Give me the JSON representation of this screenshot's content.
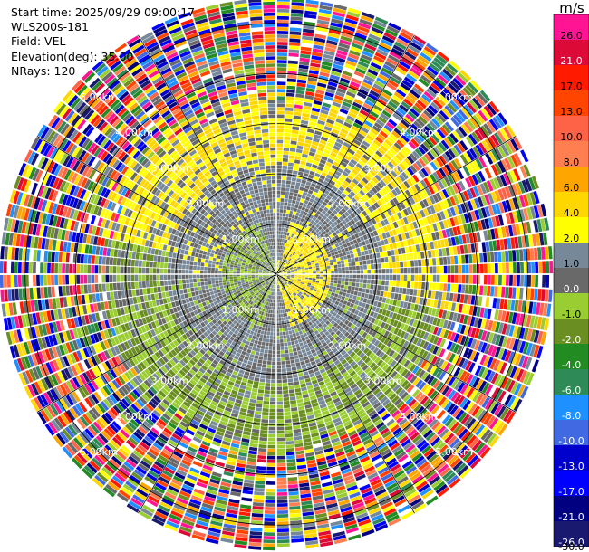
{
  "header": {
    "start_time": "Start time: 2025/09/29 09:00:17",
    "instrument": "WLS200s-181",
    "field": "Field: VEL",
    "elevation": "Elevation(deg): 35.00",
    "nrays": "NRays: 120"
  },
  "colorbar": {
    "unit": "m/s",
    "bins": [
      {
        "label": "26.0",
        "color": "#ff1493"
      },
      {
        "label": "21.0",
        "color": "#dc0a37"
      },
      {
        "label": "17.0",
        "color": "#ff1a00"
      },
      {
        "label": "13.0",
        "color": "#ff4500"
      },
      {
        "label": "10.0",
        "color": "#ff6347"
      },
      {
        "label": "8.0",
        "color": "#ff7f50"
      },
      {
        "label": "6.0",
        "color": "#ffa500"
      },
      {
        "label": "4.0",
        "color": "#ffd700"
      },
      {
        "label": "2.0",
        "color": "#ffff00"
      },
      {
        "label": "1.0",
        "color": "#778899"
      },
      {
        "label": "0.0",
        "color": "#696969"
      },
      {
        "label": "-1.0",
        "color": "#9acd32"
      },
      {
        "label": "-2.0",
        "color": "#6b8e23"
      },
      {
        "label": "-4.0",
        "color": "#228b22"
      },
      {
        "label": "-6.0",
        "color": "#2e8b57"
      },
      {
        "label": "-8.0",
        "color": "#1e90ff"
      },
      {
        "label": "-10.0",
        "color": "#4169e1"
      },
      {
        "label": "-13.0",
        "color": "#0000cd"
      },
      {
        "label": "-17.0",
        "color": "#0000ff"
      },
      {
        "label": "-21.0",
        "color": "#000080"
      },
      {
        "label": "-26.0",
        "color": "#191970"
      }
    ],
    "bottom_label": "-30.0"
  },
  "chart_data": {
    "type": "heatmap",
    "projection": "polar PPI (plan position indicator)",
    "field": "VEL",
    "units": "m/s",
    "elevation_deg": 35.0,
    "n_rays": 120,
    "max_range_km": 5.5,
    "range_rings_km": [
      1,
      2,
      3,
      4,
      5
    ],
    "ring_labels": [
      "1.00km",
      "2.00km",
      "3.00km",
      "4.00km",
      "5.00km"
    ],
    "spoke_angles_deg": [
      0,
      30,
      60,
      90,
      120,
      150,
      180,
      210,
      240,
      270,
      300,
      330
    ],
    "pattern": [
      {
        "range_km": [
          0.0,
          0.5
        ],
        "dominant_velocity": "~0.0",
        "note": "near-zero grey core"
      },
      {
        "range_km": [
          0.3,
          1.1
        ],
        "dominant_velocity": "+1 to +4",
        "sector": "east (approaching side, yellow)"
      },
      {
        "range_km": [
          0.3,
          1.1
        ],
        "dominant_velocity": "-1 to -2",
        "sector": "west (green)"
      },
      {
        "range_km": [
          1.0,
          3.0
        ],
        "dominant_velocity": "0.0 to 1.0",
        "note": "grey band"
      },
      {
        "range_km": [
          2.2,
          3.6
        ],
        "dominant_velocity": "+2 to +4",
        "sector": "north (yellow ring)"
      },
      {
        "range_km": [
          2.2,
          3.6
        ],
        "dominant_velocity": "-1 to -2",
        "sector": "south (green ring)"
      },
      {
        "range_km": [
          3.6,
          5.5
        ],
        "dominant_velocity": "noise",
        "note": "random colors, all bins"
      }
    ]
  }
}
